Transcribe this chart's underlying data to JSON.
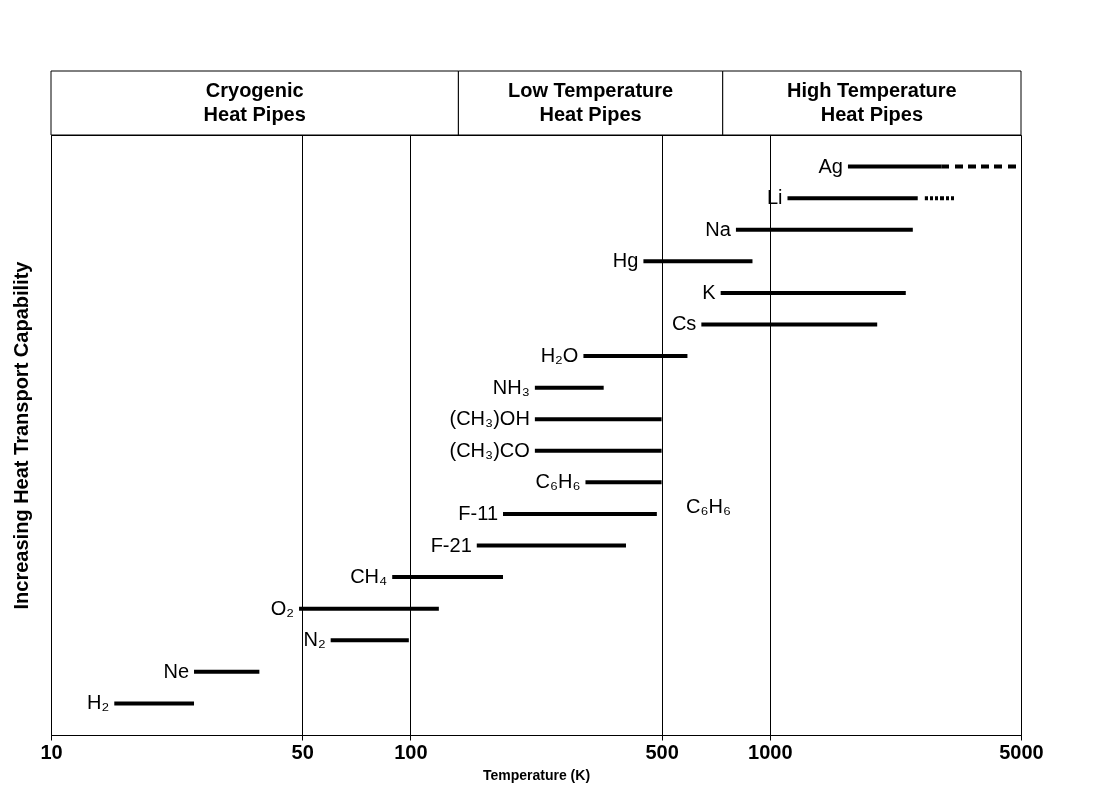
{
  "chart_data": {
    "type": "bar",
    "orientation": "horizontal",
    "log": "x",
    "grid": "x",
    "tick_labels": "x",
    "xlabel": "Temperature (K)",
    "ylabel": "Increasing Heat Transport Capability",
    "categories": [
      "Ag",
      "Li",
      "Na",
      "Hg",
      "K",
      "Cs",
      "H₂O",
      "NH₃",
      "(CH₃)OH",
      "(CH₃)CO",
      "C₆H₆",
      "F-11",
      "F-21",
      "CH₄",
      "O₂",
      "N₂",
      "Ne",
      "H₂"
    ],
    "series": [
      {
        "color": "#000000",
        "base": [
          1650,
          1120,
          805,
          445,
          730,
          645,
          303,
          222,
          222,
          222,
          307,
          181,
          153,
          89,
          49,
          60,
          25,
          15
        ],
        "values": [
          1350,
          1460,
          1695,
          450,
          1660,
          1345,
          287,
          123,
          278,
          278,
          193,
          304,
          245,
          92,
          71,
          39,
          13,
          10
        ]
      },
      {
        "color": "#000000",
        "line_style": "dashed",
        "base": [
          3000,
          2700,
          null,
          null,
          null,
          null,
          null,
          null,
          null,
          null,
          null,
          null,
          null,
          null,
          null,
          null,
          null,
          null
        ],
        "values": [
          2000,
          600,
          null,
          null,
          null,
          null,
          null,
          null,
          null,
          null,
          null,
          null,
          null,
          null,
          null,
          null,
          null,
          null
        ]
      }
    ],
    "xlim": [
      10,
      5000
    ],
    "xticks": [
      10,
      50,
      100,
      500,
      1000,
      5000
    ],
    "annotations": [
      "Cryogenic\nHeat Pipes",
      "Low Temperature\nHeat Pipes",
      "High Temperature\nHeat Pipes",
      "C₆H₆"
    ]
  }
}
